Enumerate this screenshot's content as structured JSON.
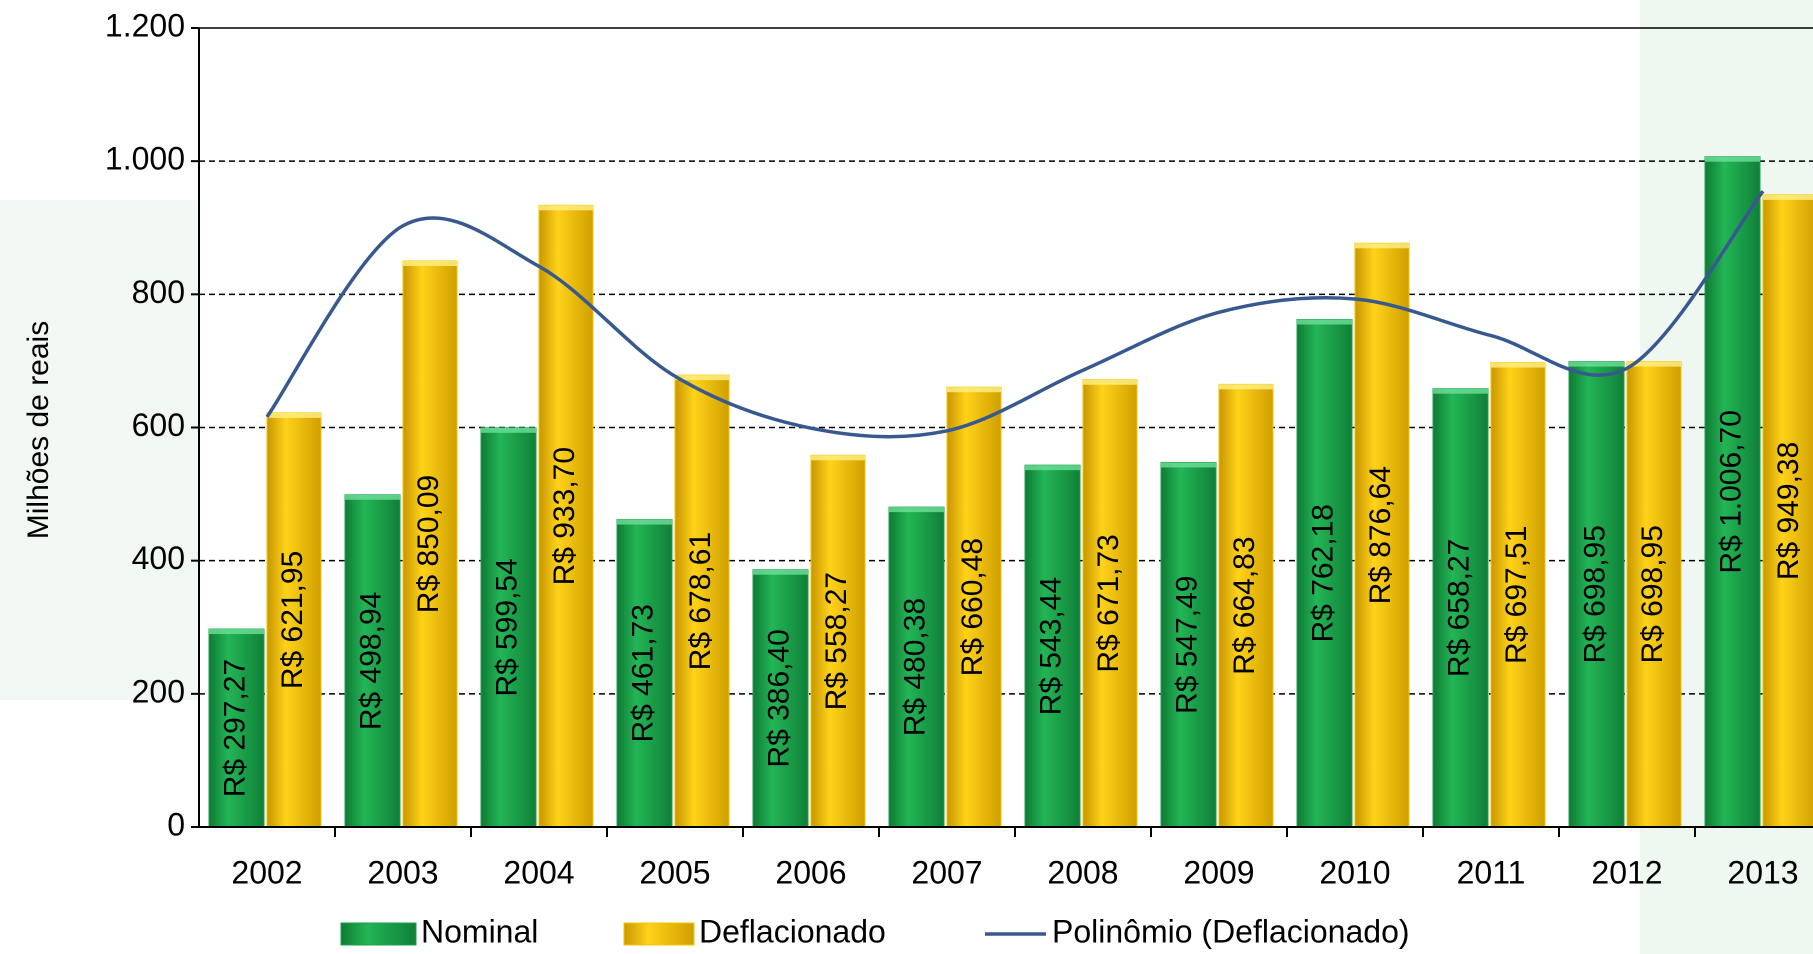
{
  "chart_data": {
    "type": "bar",
    "y_label": "Milhões de reais",
    "categories": [
      "2002",
      "2003",
      "2004",
      "2005",
      "2006",
      "2007",
      "2008",
      "2009",
      "2010",
      "2011",
      "2012",
      "2013"
    ],
    "series": [
      {
        "name": "Nominal",
        "type": "bar",
        "color": "#1ba24b",
        "values": [
          297.27,
          498.94,
          599.54,
          461.73,
          386.4,
          480.38,
          543.44,
          547.49,
          762.18,
          658.27,
          698.95,
          1006.7
        ],
        "value_labels": [
          "R$ 297,27",
          "R$ 498,94",
          "R$ 599,54",
          "R$ 461,73",
          "R$ 386,40",
          "R$ 480,38",
          "R$ 543,44",
          "R$ 547,49",
          "R$ 762,18",
          "R$ 658,27",
          "R$ 698,95",
          "R$ 1.006,70"
        ]
      },
      {
        "name": "Deflacionado",
        "type": "bar",
        "color": "#f6c500",
        "values": [
          621.95,
          850.09,
          933.7,
          678.61,
          558.27,
          660.48,
          671.73,
          664.83,
          876.64,
          697.51,
          698.95,
          949.38
        ],
        "value_labels": [
          "R$ 621,95",
          "R$ 850,09",
          "R$ 933,70",
          "R$ 678,61",
          "R$ 558,27",
          "R$ 660,48",
          "R$ 671,73",
          "R$ 664,83",
          "R$ 876,64",
          "R$ 697,51",
          "R$ 698,95",
          "R$ 949,38"
        ]
      },
      {
        "name": "Polinômio (Deflacionado)",
        "type": "line",
        "color": "#38598f",
        "values": [
          616,
          903,
          842,
          677,
          599,
          595,
          686,
          773,
          793,
          738,
          689,
          955
        ]
      }
    ],
    "ylim": [
      0,
      1200
    ],
    "yticks": [
      0,
      200,
      400,
      600,
      800,
      {
        "value": 1000,
        "label": "1.000"
      },
      {
        "value": 1200,
        "label": "1.200"
      }
    ],
    "grid": true,
    "legend": "bottom"
  }
}
